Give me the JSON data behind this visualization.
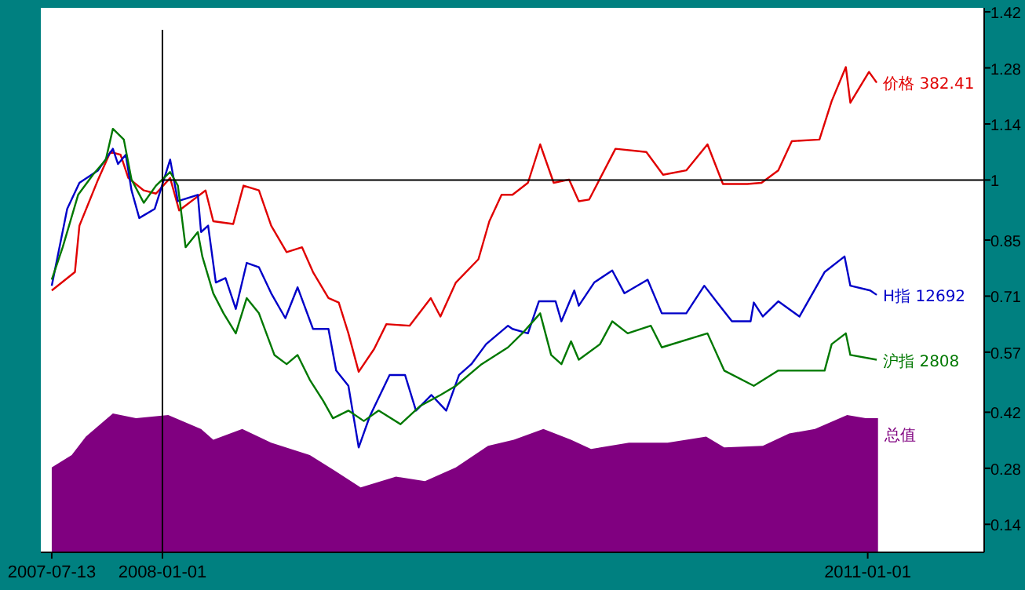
{
  "chart_data": {
    "type": "line",
    "xlim": [
      "2007-06-26",
      "2011-07-01"
    ],
    "ylim": [
      0.07,
      1.43
    ],
    "xticks": [
      "2007-07-13",
      "2008-01-01",
      "2011-01-01"
    ],
    "yticks": [
      0.14,
      0.28,
      0.42,
      0.57,
      0.71,
      0.85,
      1,
      1.14,
      1.28,
      1.42
    ],
    "legend": "right",
    "grid": false,
    "ref_lines": [
      {
        "axis": "x",
        "value": "2008-01-01",
        "color": "#000000"
      },
      {
        "axis": "y",
        "value": 1,
        "color": "#000000"
      }
    ],
    "series": [
      {
        "name": "总值",
        "type": "area",
        "color": "#800080",
        "x": [
          "2007-07-13",
          "2007-08-13",
          "2007-09-04",
          "2007-10-16",
          "2007-11-21",
          "2008-01-10",
          "2008-03-01",
          "2008-03-20",
          "2008-05-04",
          "2008-06-18",
          "2008-08-17",
          "2008-09-24",
          "2008-11-04",
          "2008-12-29",
          "2009-02-12",
          "2009-04-01",
          "2009-05-21",
          "2009-06-30",
          "2009-08-15",
          "2009-09-27",
          "2009-10-28",
          "2009-12-26",
          "2010-02-24",
          "2010-04-25",
          "2010-05-23",
          "2010-07-22",
          "2010-09-01",
          "2010-10-11",
          "2010-11-30",
          "2010-12-29",
          "2011-01-17"
        ],
        "values": [
          0.282,
          0.313,
          0.359,
          0.417,
          0.405,
          0.413,
          0.378,
          0.351,
          0.378,
          0.344,
          0.313,
          0.275,
          0.232,
          0.259,
          0.248,
          0.282,
          0.336,
          0.351,
          0.378,
          0.351,
          0.328,
          0.344,
          0.344,
          0.359,
          0.332,
          0.336,
          0.367,
          0.378,
          0.413,
          0.405,
          0.405
        ]
      },
      {
        "name": "价格 382.41",
        "color": "#e00000",
        "x": [
          "2007-07-13",
          "2007-08-18",
          "2007-08-25",
          "2007-09-23",
          "2007-10-12",
          "2007-10-28",
          "2007-11-09",
          "2007-12-03",
          "2007-12-22",
          "2008-01-13",
          "2008-01-27",
          "2008-03-08",
          "2008-03-20",
          "2008-04-20",
          "2008-05-06",
          "2008-05-30",
          "2008-06-18",
          "2008-07-12",
          "2008-08-05",
          "2008-08-22",
          "2008-09-15",
          "2008-10-01",
          "2008-10-16",
          "2008-11-01",
          "2008-11-25",
          "2008-12-14",
          "2009-01-19",
          "2009-02-21",
          "2009-03-08",
          "2009-04-01",
          "2009-05-06",
          "2009-05-23",
          "2009-06-11",
          "2009-06-28",
          "2009-07-22",
          "2009-08-10",
          "2009-08-31",
          "2009-09-24",
          "2009-10-09",
          "2009-10-25",
          "2009-12-05",
          "2010-01-22",
          "2010-02-17",
          "2010-03-25",
          "2010-04-27",
          "2010-05-21",
          "2010-06-28",
          "2010-07-20",
          "2010-08-15",
          "2010-09-05",
          "2010-10-18",
          "2010-11-06",
          "2010-11-28",
          "2010-12-05",
          "2011-01-03",
          "2011-01-15"
        ],
        "values": [
          0.724,
          0.77,
          0.886,
          1.001,
          1.07,
          1.063,
          1.005,
          0.974,
          0.966,
          1.005,
          0.924,
          0.974,
          0.897,
          0.89,
          0.986,
          0.974,
          0.886,
          0.82,
          0.832,
          0.77,
          0.705,
          0.694,
          0.617,
          0.521,
          0.578,
          0.64,
          0.636,
          0.705,
          0.659,
          0.744,
          0.802,
          0.897,
          0.963,
          0.963,
          0.993,
          1.089,
          0.993,
          1.001,
          0.947,
          0.951,
          1.078,
          1.07,
          1.013,
          1.024,
          1.089,
          0.99,
          0.99,
          0.993,
          1.024,
          1.097,
          1.101,
          1.197,
          1.282,
          1.193,
          1.27,
          1.243
        ]
      },
      {
        "name": "H指 12692",
        "color": "#0000c8",
        "x": [
          "2007-07-13",
          "2007-08-06",
          "2007-08-25",
          "2007-09-23",
          "2007-10-16",
          "2007-10-24",
          "2007-11-05",
          "2007-11-14",
          "2007-11-26",
          "2007-12-20",
          "2008-01-13",
          "2008-01-25",
          "2008-02-25",
          "2008-03-01",
          "2008-03-12",
          "2008-03-24",
          "2008-04-08",
          "2008-04-24",
          "2008-05-11",
          "2008-05-30",
          "2008-06-18",
          "2008-07-10",
          "2008-07-29",
          "2008-08-22",
          "2008-09-15",
          "2008-09-27",
          "2008-10-16",
          "2008-11-01",
          "2008-11-18",
          "2008-12-19",
          "2009-01-12",
          "2009-01-29",
          "2009-02-22",
          "2009-03-17",
          "2009-04-06",
          "2009-04-25",
          "2009-05-18",
          "2009-06-21",
          "2009-06-28",
          "2009-07-22",
          "2009-08-08",
          "2009-09-03",
          "2009-09-12",
          "2009-10-02",
          "2009-10-09",
          "2009-11-02",
          "2009-11-30",
          "2009-12-19",
          "2010-01-24",
          "2010-02-15",
          "2010-03-25",
          "2010-04-22",
          "2010-05-12",
          "2010-06-04",
          "2010-07-03",
          "2010-07-08",
          "2010-07-22",
          "2010-08-15",
          "2010-09-17",
          "2010-10-26",
          "2010-11-26",
          "2010-12-05",
          "2011-01-05",
          "2011-01-15"
        ],
        "values": [
          0.736,
          0.928,
          0.993,
          1.024,
          1.078,
          1.04,
          1.063,
          0.974,
          0.905,
          0.928,
          1.051,
          0.947,
          0.963,
          0.87,
          0.886,
          0.744,
          0.755,
          0.678,
          0.793,
          0.782,
          0.717,
          0.655,
          0.732,
          0.628,
          0.628,
          0.524,
          0.486,
          0.332,
          0.409,
          0.513,
          0.513,
          0.424,
          0.463,
          0.424,
          0.513,
          0.54,
          0.59,
          0.636,
          0.628,
          0.617,
          0.697,
          0.697,
          0.647,
          0.724,
          0.686,
          0.744,
          0.774,
          0.717,
          0.751,
          0.667,
          0.667,
          0.736,
          0.694,
          0.647,
          0.647,
          0.694,
          0.659,
          0.697,
          0.659,
          0.77,
          0.809,
          0.736,
          0.724,
          0.713
        ]
      },
      {
        "name": "沪指 2808",
        "color": "#007800",
        "x": [
          "2007-07-13",
          "2007-07-30",
          "2007-08-23",
          "2007-09-15",
          "2007-10-05",
          "2007-10-16",
          "2007-11-02",
          "2007-11-14",
          "2007-12-03",
          "2007-12-22",
          "2008-01-13",
          "2008-01-25",
          "2008-02-06",
          "2008-02-25",
          "2008-03-03",
          "2008-03-20",
          "2008-04-05",
          "2008-04-24",
          "2008-05-11",
          "2008-05-30",
          "2008-06-23",
          "2008-07-12",
          "2008-07-29",
          "2008-08-17",
          "2008-09-07",
          "2008-09-22",
          "2008-10-16",
          "2008-11-09",
          "2008-12-02",
          "2009-01-05",
          "2009-02-05",
          "2009-03-08",
          "2009-04-01",
          "2009-05-11",
          "2009-06-21",
          "2009-07-15",
          "2009-08-10",
          "2009-08-27",
          "2009-09-12",
          "2009-09-27",
          "2009-10-09",
          "2009-11-11",
          "2009-11-30",
          "2009-12-24",
          "2010-01-29",
          "2010-02-15",
          "2010-04-27",
          "2010-05-23",
          "2010-07-08",
          "2010-08-15",
          "2010-10-02",
          "2010-10-26",
          "2010-11-06",
          "2010-11-28",
          "2010-12-05",
          "2011-01-15"
        ],
        "values": [
          0.751,
          0.832,
          0.963,
          1.013,
          1.051,
          1.128,
          1.101,
          1.001,
          0.943,
          0.986,
          1.02,
          0.986,
          0.832,
          0.87,
          0.809,
          0.717,
          0.667,
          0.617,
          0.705,
          0.667,
          0.563,
          0.54,
          0.563,
          0.501,
          0.448,
          0.405,
          0.424,
          0.398,
          0.424,
          0.39,
          0.436,
          0.463,
          0.486,
          0.54,
          0.582,
          0.62,
          0.667,
          0.563,
          0.54,
          0.597,
          0.551,
          0.59,
          0.647,
          0.617,
          0.636,
          0.582,
          0.617,
          0.524,
          0.486,
          0.524,
          0.524,
          0.524,
          0.59,
          0.617,
          0.563,
          0.551
        ]
      }
    ]
  }
}
